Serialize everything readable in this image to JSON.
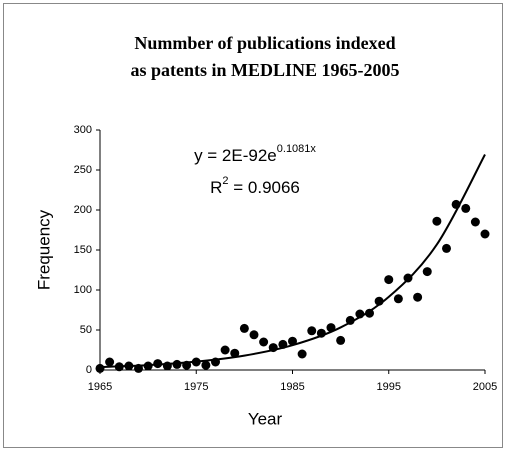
{
  "chart_data": {
    "type": "scatter",
    "title": [
      "Nummber of publications indexed",
      "as patents in MEDLINE 1965-2005"
    ],
    "x_label": "Year",
    "y_label": "Frequency",
    "equation": {
      "base": "y = 2E-92e",
      "exponent": "0.1081x"
    },
    "r_squared": {
      "base": "R",
      "exponent": "2",
      "rest": " = 0.9066"
    },
    "x": [
      1965,
      1966,
      1967,
      1968,
      1969,
      1970,
      1971,
      1972,
      1973,
      1974,
      1975,
      1976,
      1977,
      1978,
      1979,
      1980,
      1981,
      1982,
      1983,
      1984,
      1985,
      1986,
      1987,
      1988,
      1989,
      1990,
      1991,
      1992,
      1993,
      1994,
      1995,
      1996,
      1997,
      1998,
      1999,
      2000,
      2001,
      2002,
      2003,
      2004,
      2005
    ],
    "values": [
      2,
      10,
      4,
      5,
      2,
      5,
      8,
      5,
      7,
      6,
      10,
      6,
      10,
      25,
      21,
      52,
      44,
      35,
      28,
      32,
      36,
      20,
      49,
      46,
      53,
      37,
      62,
      70,
      71,
      86,
      113,
      89,
      115,
      91,
      123,
      186,
      152,
      207,
      202,
      185,
      170
    ],
    "color": "#000000",
    "trendline": {
      "x": [
        1965,
        1970,
        1975,
        1980,
        1985,
        1990,
        1995,
        2000,
        2005
      ],
      "values": [
        3.57,
        6.13,
        10.5,
        18.0,
        31.0,
        53.2,
        91.4,
        156.9,
        269.4
      ],
      "color": "#000000"
    },
    "xlim": [
      1965,
      2005
    ],
    "xticks": [
      1965,
      1975,
      1985,
      1995,
      2005
    ],
    "ylim": [
      0,
      300
    ],
    "yticks": [
      0,
      50,
      100,
      150,
      200,
      250,
      300
    ]
  }
}
